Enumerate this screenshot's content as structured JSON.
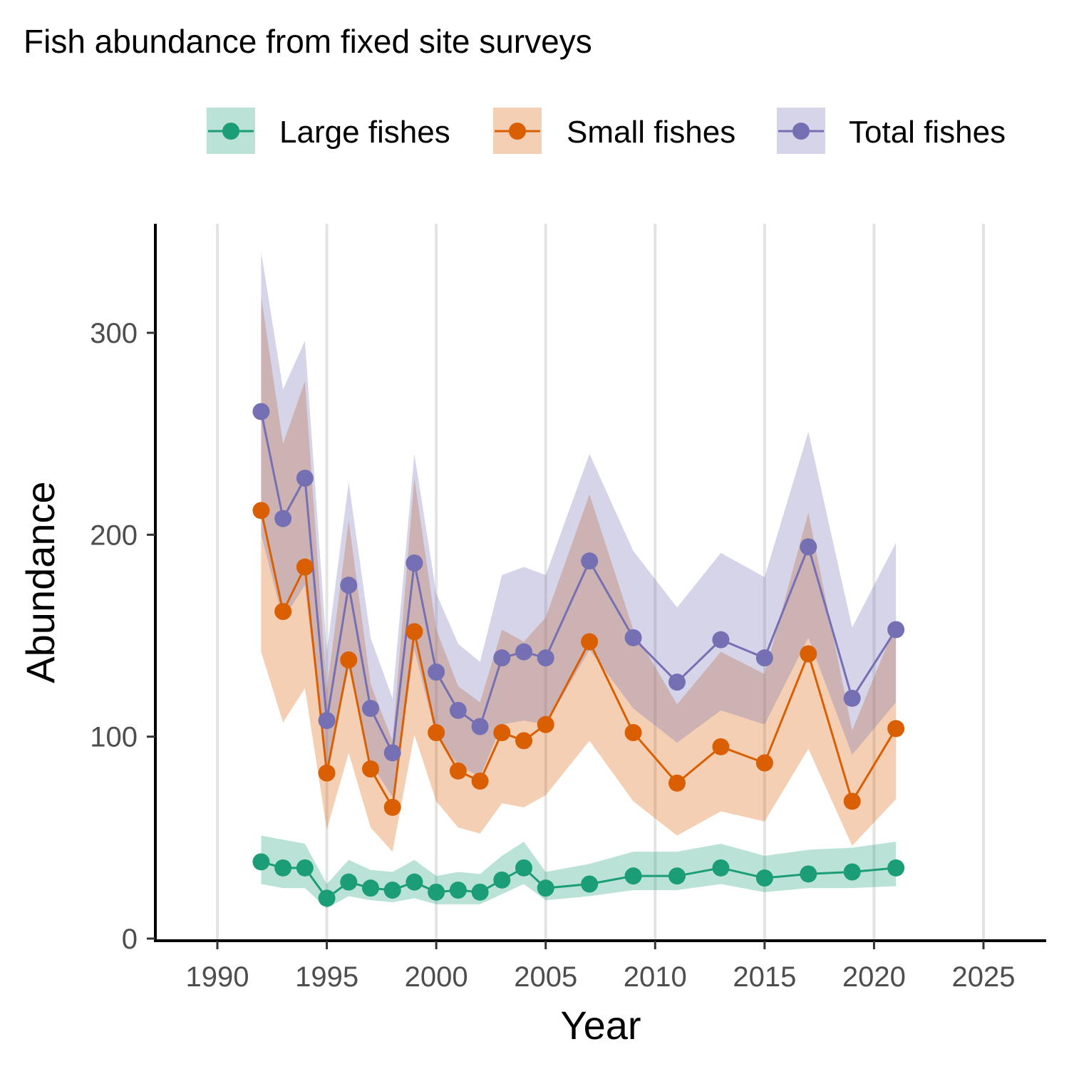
{
  "chart_data": {
    "type": "line",
    "title": "Fish abundance from fixed site surveys",
    "xlabel": "Year",
    "ylabel": "Abundance",
    "xlim": [
      1988,
      2028
    ],
    "ylim": [
      0,
      345
    ],
    "x_ticks": [
      1990,
      1995,
      2000,
      2005,
      2010,
      2015,
      2020,
      2025
    ],
    "y_ticks": [
      0,
      100,
      200,
      300
    ],
    "grid": "vertical major lines only",
    "legend_position": "top",
    "series": [
      {
        "name": "Large fishes",
        "color": "#1b9e77",
        "x": [
          1992,
          1993,
          1994,
          1995,
          1996,
          1997,
          1998,
          1999,
          2000,
          2001,
          2002,
          2003,
          2004,
          2005,
          2007,
          2009,
          2011,
          2013,
          2015,
          2017,
          2019,
          2021
        ],
        "values": [
          38,
          35,
          35,
          20,
          28,
          25,
          24,
          28,
          23,
          24,
          23,
          29,
          35,
          25,
          27,
          31,
          31,
          35,
          30,
          32,
          33,
          35
        ],
        "lower": [
          27,
          25,
          25,
          15,
          21,
          19,
          18,
          20,
          17,
          17,
          17,
          22,
          27,
          19,
          21,
          24,
          24,
          27,
          23,
          25,
          25,
          26
        ],
        "upper": [
          51,
          49,
          47,
          27,
          39,
          34,
          33,
          39,
          31,
          33,
          32,
          41,
          48,
          33,
          37,
          43,
          43,
          47,
          41,
          44,
          45,
          48
        ]
      },
      {
        "name": "Small fishes",
        "color": "#d95f02",
        "x": [
          1992,
          1993,
          1994,
          1995,
          1996,
          1997,
          1998,
          1999,
          2000,
          2001,
          2002,
          2003,
          2004,
          2005,
          2007,
          2009,
          2011,
          2013,
          2015,
          2017,
          2019,
          2021
        ],
        "values": [
          212,
          162,
          184,
          82,
          138,
          84,
          65,
          152,
          102,
          83,
          78,
          102,
          98,
          106,
          147,
          102,
          77,
          95,
          87,
          141,
          68,
          104
        ],
        "lower": [
          142,
          107,
          124,
          54,
          92,
          55,
          43,
          101,
          68,
          55,
          52,
          67,
          65,
          71,
          98,
          68,
          51,
          63,
          58,
          94,
          46,
          69
        ],
        "upper": [
          318,
          245,
          276,
          123,
          207,
          126,
          98,
          228,
          153,
          125,
          117,
          153,
          147,
          159,
          220,
          153,
          116,
          142,
          131,
          211,
          103,
          156
        ]
      },
      {
        "name": "Total fishes",
        "color": "#7570b3",
        "x": [
          1992,
          1993,
          1994,
          1995,
          1996,
          1997,
          1998,
          1999,
          2000,
          2001,
          2002,
          2003,
          2004,
          2005,
          2007,
          2009,
          2011,
          2013,
          2015,
          2017,
          2019,
          2021
        ],
        "values": [
          261,
          208,
          228,
          108,
          175,
          114,
          92,
          186,
          132,
          113,
          105,
          139,
          142,
          139,
          187,
          149,
          127,
          148,
          139,
          194,
          119,
          153
        ],
        "lower": [
          200,
          158,
          175,
          83,
          134,
          87,
          70,
          143,
          100,
          86,
          80,
          106,
          108,
          106,
          143,
          114,
          97,
          113,
          106,
          149,
          91,
          117
        ],
        "upper": [
          340,
          272,
          296,
          142,
          226,
          149,
          119,
          240,
          171,
          146,
          137,
          180,
          184,
          180,
          240,
          192,
          164,
          191,
          179,
          251,
          154,
          196
        ]
      }
    ]
  }
}
